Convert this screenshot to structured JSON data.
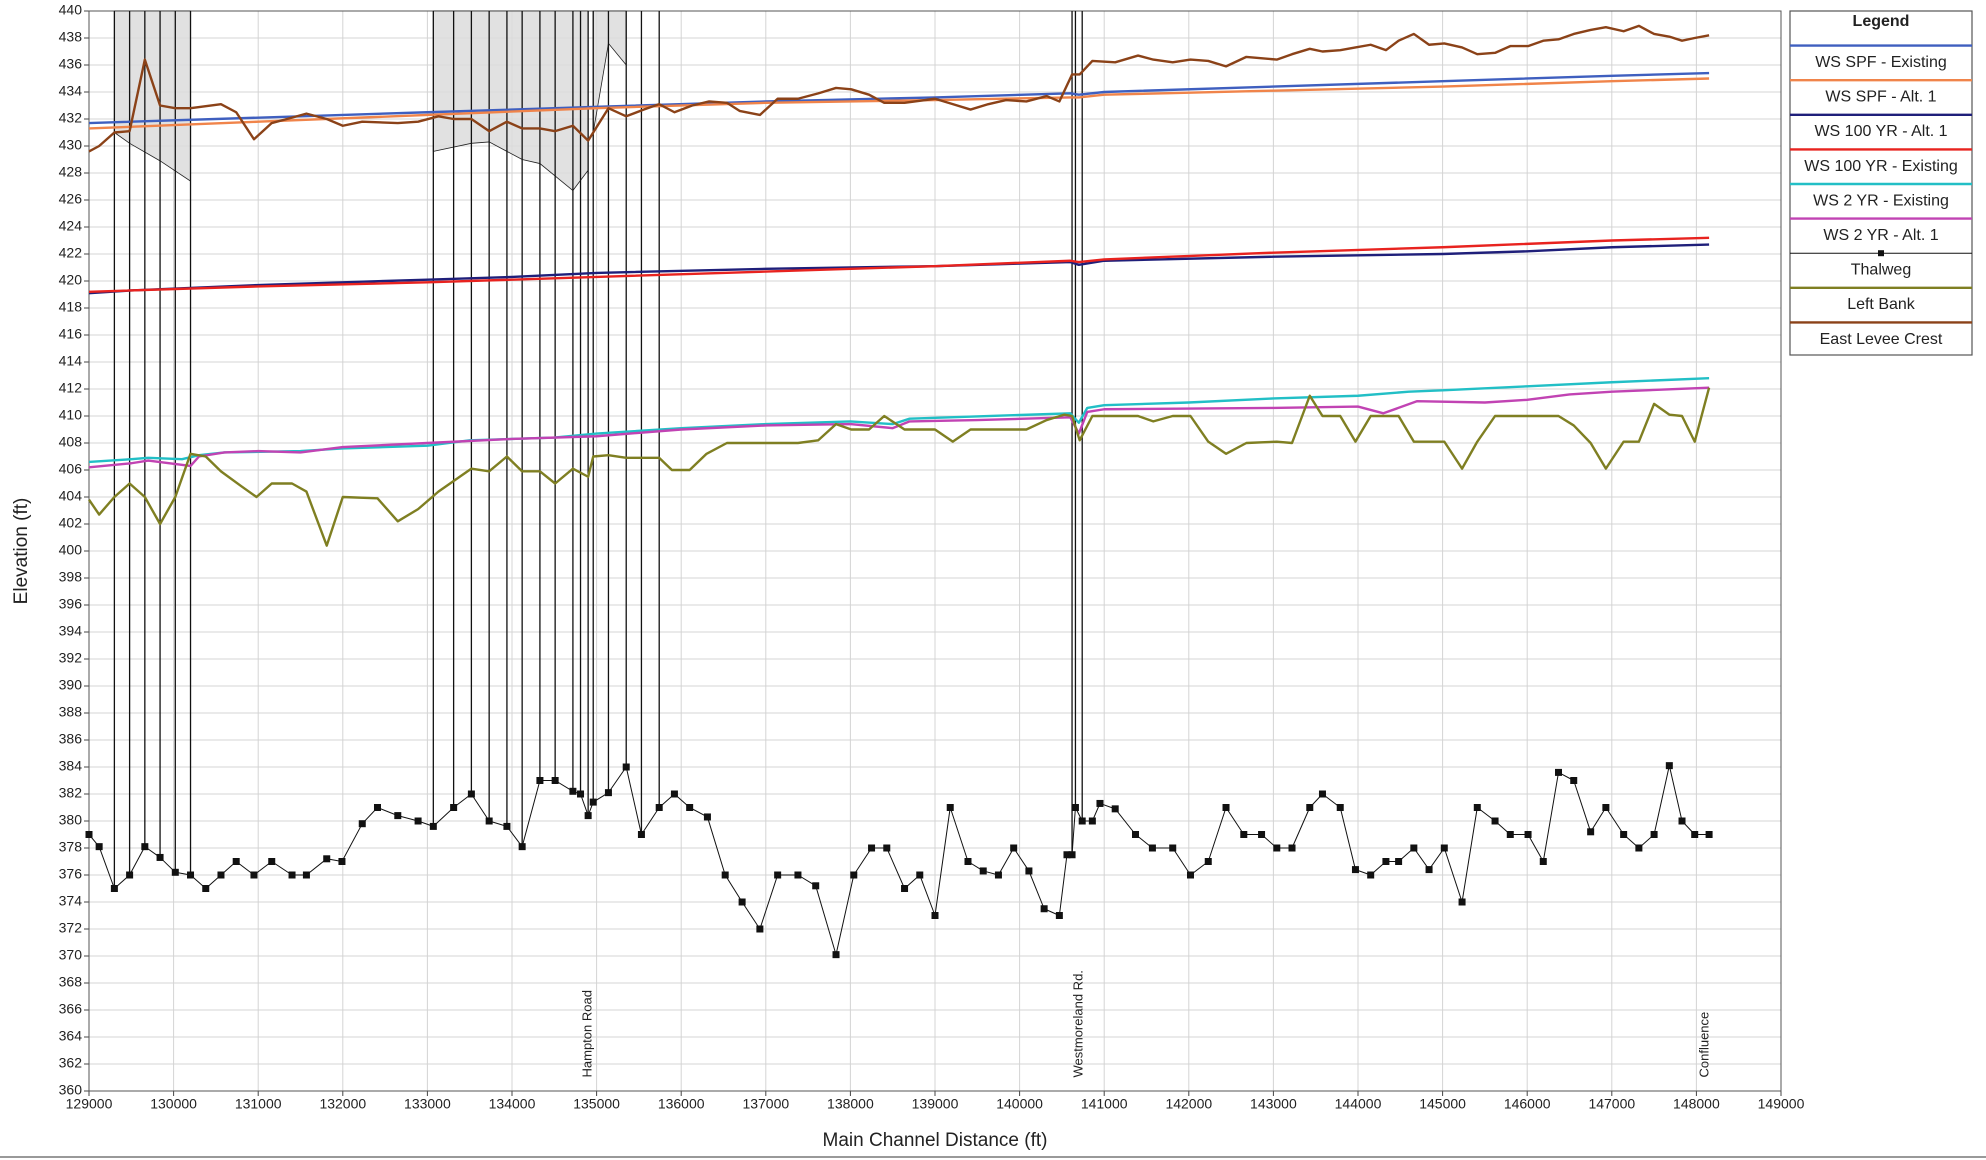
{
  "chart_data": {
    "type": "line",
    "xlabel": "Main Channel Distance (ft)",
    "ylabel": "Elevation (ft)",
    "legend_title": "Legend",
    "xlim": [
      129000,
      149000
    ],
    "ylim": [
      360,
      440
    ],
    "xticks": [
      129000,
      130000,
      131000,
      132000,
      133000,
      134000,
      135000,
      136000,
      137000,
      138000,
      139000,
      140000,
      141000,
      142000,
      143000,
      144000,
      145000,
      146000,
      147000,
      148000,
      149000
    ],
    "yticks": [
      360,
      362,
      364,
      366,
      368,
      370,
      372,
      374,
      376,
      378,
      380,
      382,
      384,
      386,
      388,
      390,
      392,
      394,
      396,
      398,
      400,
      402,
      404,
      406,
      408,
      410,
      412,
      414,
      416,
      418,
      420,
      422,
      424,
      426,
      428,
      430,
      432,
      434,
      436,
      438,
      440
    ],
    "grid": true,
    "series": [
      {
        "name": "WS  SPF - Existing",
        "color": "#3f5fbf",
        "x": [
          129000,
          131000,
          133000,
          135000,
          137000,
          139000,
          140600,
          140700,
          141000,
          143000,
          145000,
          147000,
          148150
        ],
        "values": [
          431.7,
          432.1,
          432.5,
          432.9,
          433.3,
          433.6,
          433.9,
          433.8,
          434.0,
          434.4,
          434.8,
          435.2,
          435.4
        ]
      },
      {
        "name": "WS  SPF - Alt. 1",
        "color": "#f0844a",
        "x": [
          129000,
          131000,
          133000,
          135000,
          137000,
          139000,
          140600,
          140700,
          141000,
          143000,
          145000,
          147000,
          148150
        ],
        "values": [
          431.3,
          431.8,
          432.3,
          432.8,
          433.2,
          433.4,
          433.6,
          433.6,
          433.8,
          434.1,
          434.4,
          434.8,
          435.0
        ]
      },
      {
        "name": "WS  100 YR - Alt. 1",
        "color": "#1f1f7a",
        "x": [
          129000,
          129500,
          131000,
          133000,
          134000,
          135000,
          137000,
          139000,
          140600,
          140700,
          141000,
          143000,
          145000,
          146000,
          147000,
          148150
        ],
        "values": [
          419.1,
          419.3,
          419.7,
          420.1,
          420.3,
          420.6,
          420.9,
          421.1,
          421.4,
          421.2,
          421.5,
          421.8,
          422.0,
          422.2,
          422.5,
          422.7
        ]
      },
      {
        "name": "WS  100 YR - Existing",
        "color": "#e8231f",
        "x": [
          129000,
          131000,
          133000,
          135000,
          137000,
          139000,
          140600,
          140700,
          141000,
          143000,
          145000,
          147000,
          148150
        ],
        "values": [
          419.2,
          419.6,
          419.9,
          420.3,
          420.7,
          421.1,
          421.5,
          421.4,
          421.6,
          422.1,
          422.5,
          423.0,
          423.2
        ]
      },
      {
        "name": "WS  2 YR - Existing",
        "color": "#22bfc6",
        "x": [
          129000,
          129500,
          129700,
          130100,
          130300,
          130600,
          131500,
          132000,
          133000,
          133500,
          134500,
          135000,
          136000,
          137000,
          138000,
          138500,
          138700,
          140600,
          140700,
          140800,
          141000,
          142000,
          143000,
          144000,
          144600,
          145000,
          146000,
          147000,
          148150
        ],
        "values": [
          406.6,
          406.8,
          406.9,
          406.8,
          407.1,
          407.3,
          407.4,
          407.6,
          407.8,
          408.2,
          408.4,
          408.7,
          409.1,
          409.4,
          409.6,
          409.4,
          409.8,
          410.2,
          409.5,
          410.6,
          410.8,
          411.0,
          411.3,
          411.5,
          411.8,
          411.9,
          412.2,
          412.5,
          412.8
        ]
      },
      {
        "name": "WS  2 YR - Alt. 1",
        "color": "#c143b3",
        "x": [
          129000,
          129500,
          129700,
          130200,
          130300,
          130600,
          131000,
          131500,
          132000,
          133000,
          134000,
          135000,
          136000,
          137000,
          138000,
          138500,
          138700,
          139500,
          140600,
          140700,
          140800,
          141000,
          143000,
          144000,
          144300,
          144700,
          145500,
          146000,
          146500,
          147000,
          148150
        ],
        "values": [
          406.2,
          406.5,
          406.7,
          406.3,
          407.0,
          407.3,
          407.4,
          407.3,
          407.7,
          408.0,
          408.3,
          408.5,
          409.0,
          409.3,
          409.4,
          409.1,
          409.6,
          409.7,
          409.9,
          408.7,
          410.3,
          410.5,
          410.6,
          410.7,
          410.2,
          411.1,
          411.0,
          411.2,
          411.6,
          411.8,
          412.1
        ]
      },
      {
        "name": "Thalweg",
        "color": "#111111",
        "marker": "square",
        "x": [
          129000,
          129120,
          129300,
          129480,
          129660,
          129840,
          130020,
          130200,
          130380,
          130560,
          130740,
          130950,
          131160,
          131400,
          131570,
          131810,
          131990,
          132230,
          132410,
          132650,
          132890,
          133070,
          133310,
          133520,
          133730,
          133940,
          134120,
          134330,
          134510,
          134720,
          134810,
          134900,
          134960,
          135140,
          135350,
          135530,
          135740,
          135920,
          136100,
          136310,
          136520,
          136720,
          136930,
          137140,
          137380,
          137590,
          137830,
          138040,
          138250,
          138430,
          138640,
          138820,
          139000,
          139180,
          139390,
          139570,
          139750,
          139930,
          140110,
          140290,
          140470,
          140560,
          140620,
          140660,
          140740,
          140860,
          140950,
          141130,
          141370,
          141570,
          141810,
          142020,
          142230,
          142440,
          142650,
          142860,
          143040,
          143220,
          143430,
          143580,
          143790,
          143970,
          144150,
          144330,
          144480,
          144660,
          144840,
          145020,
          145230,
          145410,
          145620,
          145800,
          146010,
          146190,
          146370,
          146550,
          146750,
          146930,
          147140,
          147320,
          147500,
          147680,
          147830,
          147980,
          148150
        ],
        "values": [
          379,
          378.1,
          375,
          376,
          378.1,
          377.3,
          376.2,
          376,
          375,
          376,
          377,
          376,
          377,
          376,
          376,
          377.2,
          377,
          379.8,
          381,
          380.4,
          380,
          379.6,
          381,
          382,
          380,
          379.6,
          378.1,
          383,
          383,
          382.2,
          382,
          380.4,
          381.4,
          382.1,
          384,
          379,
          381,
          382,
          381,
          380.3,
          376,
          374,
          372,
          376,
          376,
          375.2,
          370.1,
          376,
          378,
          378,
          375,
          376,
          373,
          381,
          377,
          376.3,
          376,
          378,
          376.3,
          373.5,
          373,
          377.5,
          377.5,
          381,
          380,
          380,
          381.3,
          380.9,
          379,
          378,
          378,
          376,
          377,
          381,
          379,
          379,
          378,
          378,
          381,
          382,
          381,
          376.4,
          376,
          377,
          377,
          378,
          376.4,
          378,
          374,
          381,
          380,
          379,
          379,
          377,
          383.6,
          383,
          379.2,
          381,
          379,
          378,
          379,
          384.1,
          380,
          379,
          379
        ]
      },
      {
        "name": "Left Bank",
        "color": "#7f7f22",
        "x": [
          129000,
          129120,
          129300,
          129480,
          129660,
          129840,
          130020,
          130200,
          130380,
          130560,
          130800,
          130980,
          131160,
          131400,
          131570,
          131810,
          132000,
          132410,
          132650,
          132890,
          133130,
          133520,
          133730,
          133940,
          134120,
          134330,
          134510,
          134720,
          134900,
          134960,
          135140,
          135350,
          135740,
          135890,
          136100,
          136300,
          136540,
          137380,
          137620,
          137830,
          138010,
          138220,
          138400,
          138640,
          139000,
          139210,
          139420,
          140080,
          140320,
          140530,
          140620,
          140710,
          140860,
          141400,
          141580,
          141810,
          142020,
          142230,
          142440,
          142680,
          143040,
          143220,
          143430,
          143580,
          143790,
          143970,
          144150,
          144480,
          144660,
          145020,
          145230,
          145410,
          145620,
          146370,
          146550,
          146750,
          146930,
          147140,
          147320,
          147500,
          147680,
          147830,
          147980,
          148150
        ],
        "values": [
          403.8,
          402.7,
          404,
          405,
          404,
          402,
          404,
          407.2,
          407,
          405.9,
          404.8,
          404,
          405,
          405,
          404.4,
          400.4,
          404,
          403.9,
          402.2,
          403.1,
          404.4,
          406.1,
          405.9,
          407,
          405.9,
          405.9,
          405,
          406.1,
          405.5,
          407,
          407.1,
          406.9,
          406.9,
          406,
          406,
          407.2,
          408,
          408,
          408.2,
          409.4,
          409,
          409,
          410,
          409,
          409,
          408.1,
          409,
          409,
          409.7,
          410.1,
          410,
          408.2,
          410,
          410,
          409.6,
          410,
          410,
          408.1,
          407.2,
          408,
          408.1,
          408,
          411.5,
          410,
          410,
          408.1,
          410,
          410,
          408.1,
          408.1,
          406.1,
          408.1,
          410,
          410,
          409.3,
          408,
          406.1,
          408.1,
          408.1,
          410.9,
          410.1,
          410,
          408.1,
          412.1
        ]
      },
      {
        "name": "East Levee Crest",
        "color": "#8b4218",
        "x": [
          129000,
          129120,
          129300,
          129480,
          129660,
          129840,
          130020,
          130200,
          130560,
          130740,
          130950,
          131160,
          131400,
          131570,
          131810,
          132000,
          132230,
          132650,
          132890,
          133130,
          133310,
          133520,
          133730,
          133940,
          134120,
          134330,
          134510,
          134720,
          134900,
          135140,
          135350,
          135560,
          135740,
          135920,
          136130,
          136330,
          136540,
          136690,
          136930,
          137140,
          137380,
          137620,
          137830,
          138010,
          138220,
          138400,
          138640,
          139000,
          139210,
          139420,
          139630,
          139840,
          140080,
          140320,
          140470,
          140620,
          140710,
          140860,
          141130,
          141400,
          141580,
          141810,
          142020,
          142230,
          142440,
          142680,
          143040,
          143220,
          143430,
          143580,
          143790,
          143970,
          144150,
          144330,
          144480,
          144660,
          144840,
          145020,
          145230,
          145410,
          145620,
          145800,
          146010,
          146190,
          146370,
          146550,
          146750,
          146930,
          147140,
          147320,
          147500,
          147680,
          147830,
          147980,
          148150
        ],
        "values": [
          429.6,
          430,
          431,
          431.1,
          436.4,
          433,
          432.8,
          432.8,
          433.1,
          432.5,
          430.5,
          431.7,
          432.1,
          432.4,
          432,
          431.5,
          431.8,
          431.7,
          431.8,
          432.2,
          432,
          432,
          431.1,
          431.8,
          431.3,
          431.3,
          431.1,
          431.5,
          430.4,
          432.8,
          432.2,
          432.7,
          433.1,
          432.5,
          433,
          433.3,
          433.2,
          432.6,
          432.3,
          433.5,
          433.5,
          433.9,
          434.3,
          434.2,
          433.8,
          433.2,
          433.2,
          433.5,
          433.1,
          432.7,
          433.1,
          433.4,
          433.3,
          433.7,
          433.3,
          435.3,
          435.3,
          436.3,
          436.2,
          436.7,
          436.4,
          436.2,
          436.4,
          436.3,
          435.9,
          436.6,
          436.4,
          436.8,
          437.2,
          437,
          437.1,
          437.3,
          437.5,
          437.1,
          437.8,
          438.3,
          437.5,
          437.6,
          437.3,
          436.8,
          436.9,
          437.4,
          437.4,
          437.8,
          437.9,
          438.3,
          438.6,
          438.8,
          438.5,
          438.9,
          438.3,
          438.1,
          437.8,
          438,
          438.2
        ]
      }
    ],
    "vertical_lines": [
      129300,
      129480,
      129660,
      129840,
      130020,
      130200,
      133070,
      133310,
      133520,
      133730,
      133940,
      134120,
      134330,
      134510,
      134720,
      134810,
      134900,
      134960,
      135140,
      135350,
      135530,
      135740,
      140620,
      140660,
      140740
    ],
    "ineffective_areas": [
      {
        "x": [
          129300,
          129480,
          129840,
          130200
        ],
        "y": [
          431,
          430.2,
          428.9,
          427.4
        ]
      },
      {
        "x": [
          133070,
          133520,
          133730,
          134120,
          134330,
          134720,
          134900
        ],
        "y": [
          429.6,
          430.2,
          430.3,
          429,
          428.7,
          426.7,
          428.2
        ]
      },
      {
        "x": [
          134960,
          135140,
          135350,
          135350
        ],
        "y": [
          431,
          437.6,
          436,
          440
        ]
      }
    ],
    "annotations": [
      {
        "text": "Hampton Road",
        "x": 134900,
        "y": 361
      },
      {
        "text": "Westmoreland Rd.",
        "x": 140700,
        "y": 361
      },
      {
        "text": "Confluence",
        "x": 148100,
        "y": 361
      }
    ]
  }
}
